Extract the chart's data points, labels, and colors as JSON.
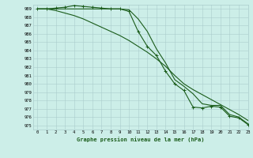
{
  "title": "Graphe pression niveau de la mer (hPa)",
  "bg_color": "#cceee8",
  "grid_color": "#aacccc",
  "line_color": "#1a5c1a",
  "xlim": [
    -0.5,
    23
  ],
  "ylim": [
    974.5,
    989.5
  ],
  "yticks": [
    975,
    976,
    977,
    978,
    979,
    980,
    981,
    982,
    983,
    984,
    985,
    986,
    987,
    988,
    989
  ],
  "xticks": [
    0,
    1,
    2,
    3,
    4,
    5,
    6,
    7,
    8,
    9,
    10,
    11,
    12,
    13,
    14,
    15,
    16,
    17,
    18,
    19,
    20,
    21,
    22,
    23
  ],
  "series": [
    {
      "x": [
        0,
        1,
        2,
        3,
        4,
        5,
        6,
        7,
        8,
        9,
        10,
        11,
        12,
        13,
        14,
        15,
        16,
        17,
        18,
        19,
        20,
        21,
        22,
        23
      ],
      "y": [
        989.0,
        989.0,
        989.1,
        989.2,
        989.4,
        989.3,
        989.2,
        989.1,
        989.0,
        989.0,
        988.7,
        986.3,
        984.5,
        983.4,
        981.5,
        980.0,
        979.2,
        977.2,
        977.1,
        977.3,
        977.2,
        976.1,
        975.9,
        975.1
      ],
      "marker": "+",
      "lw": 0.8
    },
    {
      "x": [
        0,
        1,
        2,
        3,
        4,
        5,
        6,
        7,
        8,
        9,
        10,
        11,
        12,
        13,
        14,
        15,
        16,
        17,
        18,
        19,
        20,
        21,
        22,
        23
      ],
      "y": [
        989.0,
        989.0,
        989.0,
        989.0,
        989.0,
        989.0,
        989.0,
        989.0,
        989.0,
        989.0,
        988.9,
        987.8,
        986.3,
        984.2,
        982.5,
        980.5,
        979.7,
        978.8,
        977.6,
        977.4,
        977.4,
        976.3,
        976.0,
        975.2
      ],
      "marker": null,
      "lw": 0.8
    },
    {
      "x": [
        0,
        1,
        2,
        3,
        4,
        5,
        6,
        7,
        8,
        9,
        10,
        11,
        12,
        13,
        14,
        15,
        16,
        17,
        18,
        19,
        20,
        21,
        22,
        23
      ],
      "y": [
        989.0,
        989.0,
        988.8,
        988.5,
        988.2,
        987.8,
        987.3,
        986.8,
        986.3,
        985.8,
        985.2,
        984.5,
        983.8,
        983.0,
        982.1,
        981.0,
        980.0,
        979.3,
        978.7,
        978.1,
        977.5,
        976.9,
        976.3,
        975.6
      ],
      "marker": null,
      "lw": 0.8
    }
  ]
}
